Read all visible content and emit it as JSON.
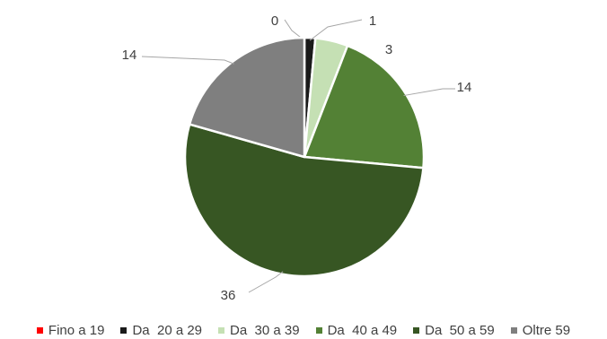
{
  "chart_data": {
    "type": "pie",
    "categories": [
      "Fino a 19",
      "Da  20 a 29",
      "Da  30 a 39",
      "Da  40 a 49",
      "Da  50 a 59",
      "Oltre 59"
    ],
    "values": [
      0,
      1,
      3,
      14,
      36,
      14
    ],
    "labels": [
      "0",
      "1",
      "3",
      "14",
      "36",
      "14"
    ],
    "colors": [
      "#ff0000",
      "#1a1a1a",
      "#c5e0b4",
      "#538135",
      "#375623",
      "#7f7f7f"
    ],
    "legend_position": "bottom"
  }
}
